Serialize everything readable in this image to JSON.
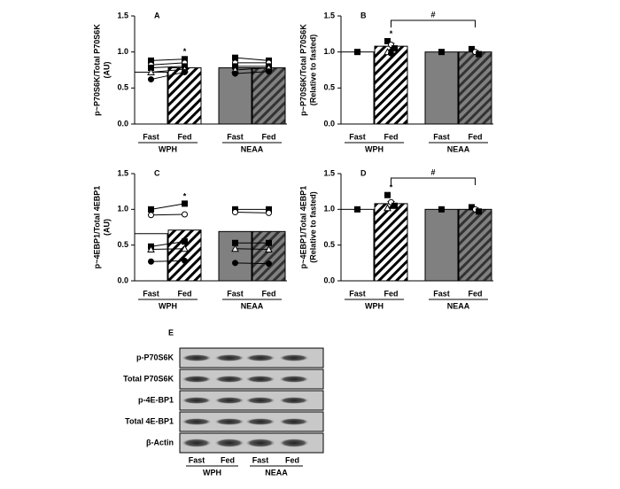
{
  "chart_data": [
    {
      "type": "bar",
      "panel": "A",
      "ylabel": [
        "p~P70S6K/Total P70S6K",
        "(AU)"
      ],
      "categories": [
        "Fast",
        "Fed",
        "Fast",
        "Fed"
      ],
      "groups": [
        "WPH",
        "NEAA"
      ],
      "values": [
        0.72,
        0.78,
        0.78,
        0.78
      ],
      "colors": [
        "#ffffff",
        "#ffffff",
        "#808080",
        "#808080"
      ],
      "hatched": [
        false,
        true,
        false,
        true
      ],
      "points": [
        [
          0.88,
          0.82,
          0.78,
          0.72,
          0.62
        ],
        [
          0.9,
          0.85,
          0.8,
          0.76,
          0.72
        ],
        [
          0.92,
          0.85,
          0.8,
          0.75,
          0.7
        ],
        [
          0.88,
          0.85,
          0.8,
          0.78,
          0.73
        ]
      ],
      "paired": true,
      "star": {
        "text": "*",
        "category": 1
      },
      "ylim": [
        0,
        1.5
      ],
      "yticks": [
        {
          "value": 0,
          "label": "0.0"
        },
        0.5,
        {
          "value": 1,
          "label": "1.0"
        },
        1.5
      ]
    },
    {
      "type": "bar",
      "panel": "B",
      "ylabel": [
        "p~P70S6K/Total P70S6K",
        "(Relative to fasted)"
      ],
      "categories": [
        "Fast",
        "Fed",
        "Fast",
        "Fed"
      ],
      "groups": [
        "WPH",
        "NEAA"
      ],
      "values": [
        1.0,
        1.08,
        1.0,
        1.0
      ],
      "errors": [
        0,
        0.04,
        0,
        0.02
      ],
      "colors": [
        "#ffffff",
        "#ffffff",
        "#808080",
        "#808080"
      ],
      "hatched": [
        false,
        true,
        false,
        true
      ],
      "points": [
        [
          1.0
        ],
        [
          1.15,
          1.1,
          1.05,
          1.0,
          0.98
        ],
        [
          1.0
        ],
        [
          1.04,
          1.0,
          0.97
        ]
      ],
      "paired": false,
      "star": {
        "text": "*",
        "category": 1
      },
      "bracket": {
        "text": "#",
        "from": 1,
        "to": 3
      },
      "ylim": [
        0,
        1.5
      ],
      "yticks": [
        {
          "value": 0,
          "label": "0.0"
        },
        0.5,
        {
          "value": 1,
          "label": "1.0"
        },
        1.5
      ]
    },
    {
      "type": "bar",
      "panel": "C",
      "ylabel": [
        "p~4EBP1/Total 4EBP1",
        "(AU)"
      ],
      "categories": [
        "Fast",
        "Fed",
        "Fast",
        "Fed"
      ],
      "groups": [
        "WPH",
        "NEAA"
      ],
      "values": [
        0.66,
        0.71,
        0.69,
        0.69
      ],
      "colors": [
        "#ffffff",
        "#ffffff",
        "#808080",
        "#808080"
      ],
      "hatched": [
        false,
        true,
        false,
        true
      ],
      "points": [
        [
          1.0,
          0.92,
          0.48,
          0.44,
          0.27
        ],
        [
          1.08,
          0.93,
          0.55,
          0.45,
          0.28
        ],
        [
          1.0,
          0.96,
          0.53,
          0.45,
          0.25
        ],
        [
          1.0,
          0.95,
          0.53,
          0.44,
          0.24
        ]
      ],
      "paired": true,
      "star": {
        "text": "*",
        "category": 1
      },
      "ylim": [
        0,
        1.5
      ],
      "yticks": [
        {
          "value": 0,
          "label": "0.0"
        },
        0.5,
        {
          "value": 1,
          "label": "1.0"
        },
        1.5
      ]
    },
    {
      "type": "bar",
      "panel": "D",
      "ylabel": [
        "p~4EBP1/Total 4EBP1",
        "(Relative to fasted)"
      ],
      "categories": [
        "Fast",
        "Fed",
        "Fast",
        "Fed"
      ],
      "groups": [
        "WPH",
        "NEAA"
      ],
      "values": [
        1.0,
        1.08,
        1.0,
        1.0
      ],
      "errors": [
        0,
        0.03,
        0,
        0.02
      ],
      "colors": [
        "#ffffff",
        "#ffffff",
        "#808080",
        "#808080"
      ],
      "hatched": [
        false,
        true,
        false,
        true
      ],
      "points": [
        [
          1.0
        ],
        [
          1.2,
          1.1,
          1.05,
          1.02
        ],
        [
          1.0
        ],
        [
          1.03,
          1.0,
          0.97
        ]
      ],
      "paired": false,
      "star": {
        "text": "*",
        "category": 1
      },
      "bracket": {
        "text": "#",
        "from": 1,
        "to": 3
      },
      "ylim": [
        0,
        1.5
      ],
      "yticks": [
        {
          "value": 0,
          "label": "0.0"
        },
        0.5,
        {
          "value": 1,
          "label": "1.0"
        },
        1.5
      ]
    }
  ],
  "blot": {
    "panel": "E",
    "rows": [
      "p-P70S6K",
      "Total P70S6K",
      "p-4E-BP1",
      "Total 4E-BP1",
      "β-Actin"
    ],
    "lanes": [
      "Fast",
      "Fed",
      "Fast",
      "Fed"
    ],
    "groups": [
      "WPH",
      "NEAA"
    ]
  }
}
